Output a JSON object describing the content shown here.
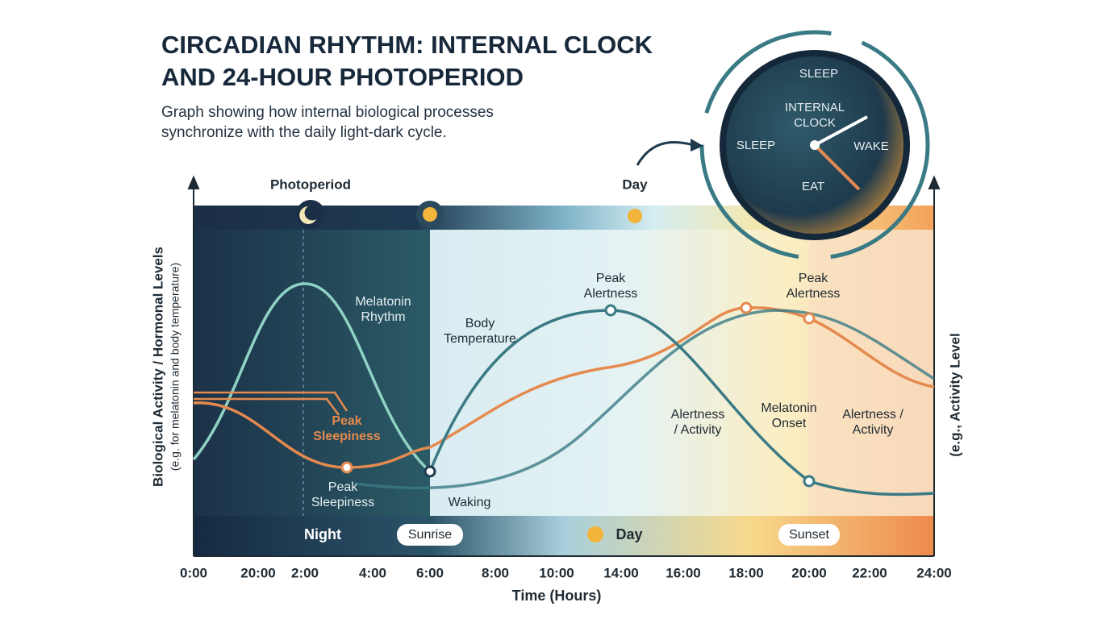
{
  "title": [
    "CIRCADIAN RHYTHM: INTERNAL CLOCK",
    "AND 24-HOUR PHOTOPERIOD"
  ],
  "subtitle": [
    "Graph showing how internal biological processes",
    "synchronize with the daily light-dark cycle."
  ],
  "clock": {
    "top": "SLEEP",
    "center": [
      "INTERNAL",
      "CLOCK"
    ],
    "left": "SLEEP",
    "right": "WAKE",
    "bottom": "EAT"
  },
  "photoperiod": {
    "label": "Photoperiod",
    "day": "Day"
  },
  "bottom_band": {
    "night": "Night",
    "sunrise": "Sunrise",
    "day": "Day",
    "sunset": "Sunset"
  },
  "annotations": [
    [
      "Melatonin",
      "Rhythm"
    ],
    [
      "Peak",
      "Sleepiness"
    ],
    [
      "Peak",
      "Sleepiness"
    ],
    [
      "Body",
      "Temperature"
    ],
    [
      "Waking"
    ],
    [
      "Peak",
      "Alertness"
    ],
    [
      "Peak",
      "Alertness"
    ],
    [
      "Alertness",
      "/ Activity"
    ],
    [
      "Melatonin",
      "Onset"
    ],
    [
      "Alertness /",
      "Activity"
    ]
  ],
  "y_axis_left": [
    "Biological Activity / Hormonal Levels",
    "(e.g. for melatonin and body temperature)"
  ],
  "y_axis_right": "(e.g., Activity Level",
  "x_axis": {
    "label": "Time (Hours)",
    "ticks": [
      "0:00",
      "20:00",
      "2:00",
      "4:00",
      "6:00",
      "8:00",
      "10:00",
      "14:00",
      "16:00",
      "18:00",
      "20:00",
      "22:00",
      "24:00"
    ]
  }
}
